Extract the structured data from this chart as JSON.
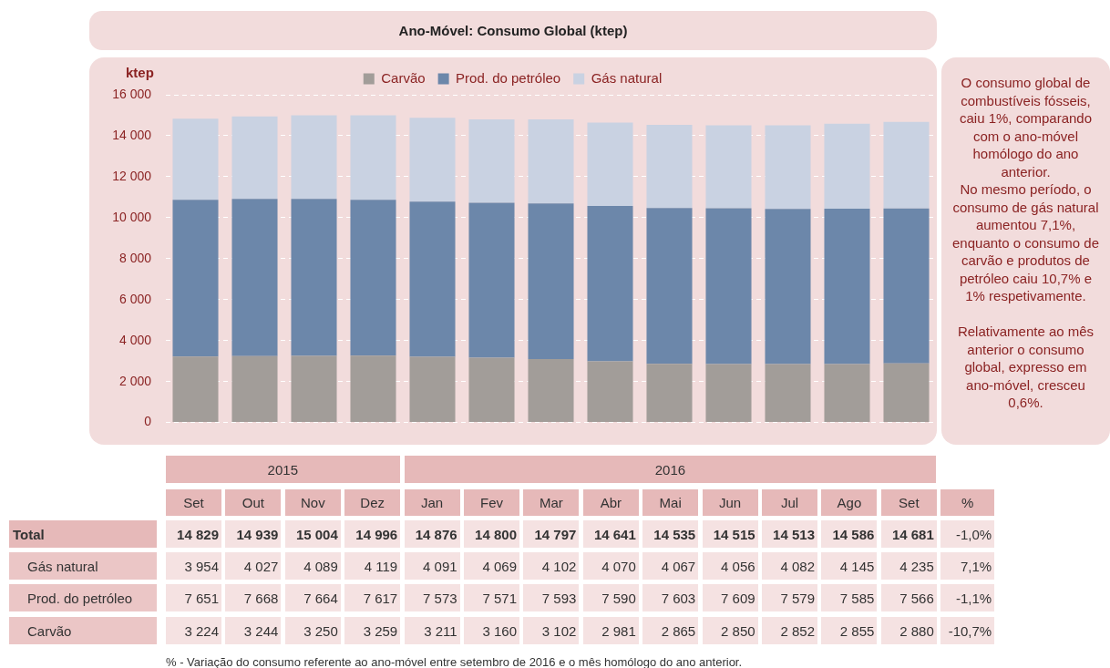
{
  "chart_data": {
    "type": "bar",
    "stacked": true,
    "title": "Ano-Móvel: Consumo Global (ktep)",
    "ylabel": "ktep",
    "categories": [
      "Set",
      "Out",
      "Nov",
      "Dez",
      "Jan",
      "Fev",
      "Mar",
      "Abr",
      "Mai",
      "Jun",
      "Jul",
      "Ago",
      "Set"
    ],
    "series": [
      {
        "name": "Carvão",
        "color": "#a29d99",
        "values": [
          3224,
          3244,
          3250,
          3259,
          3211,
          3160,
          3102,
          2981,
          2865,
          2850,
          2852,
          2855,
          2880
        ]
      },
      {
        "name": "Prod. do petróleo",
        "color": "#6c87aa",
        "values": [
          7651,
          7668,
          7664,
          7617,
          7573,
          7571,
          7593,
          7590,
          7603,
          7609,
          7579,
          7585,
          7566
        ]
      },
      {
        "name": "Gás natural",
        "color": "#c9d2e2",
        "values": [
          3954,
          4027,
          4089,
          4119,
          4091,
          4069,
          4102,
          4070,
          4067,
          4056,
          4082,
          4145,
          4235
        ]
      }
    ],
    "data_labels": true,
    "ylim": [
      0,
      16000
    ],
    "yticks": [
      0,
      {
        "value": 2000,
        "label": "2 000"
      },
      {
        "value": 4000,
        "label": "4 000"
      },
      {
        "value": 6000,
        "label": "6 000"
      },
      {
        "value": 8000,
        "label": "8 000"
      },
      {
        "value": 10000,
        "label": "10 000"
      },
      {
        "value": 12000,
        "label": "12 000"
      },
      {
        "value": 14000,
        "label": "14 000"
      },
      {
        "value": 16000,
        "label": "16 000"
      }
    ],
    "grid": "y",
    "legend": "top",
    "annotations": [
      "O consumo global  de combustíveis fósseis, caiu 1%,  comparando com o ano-móvel homólogo do ano anterior.\nNo mesmo período, o consumo de gás natural aumentou 7,1%, enquanto o consumo de carvão e produtos de petróleo caiu 10,7% e 1% respetivamente.\n\nRelativamente ao mês anterior o consumo global,  expresso em ano-móvel, cresceu 0,6%.",
      "% - Variação do consumo referente ao ano-móvel entre setembro de 2016 e o mês homólogo do ano anterior.",
      "2015",
      "2016",
      "%",
      "Total",
      "-1,0%",
      "7,1%",
      "-1,1%",
      "-10,7%",
      "14 829",
      "14 939",
      "15 004",
      "14 996",
      "14 876",
      "14 800",
      "14 797",
      "14 641",
      "14 535",
      "14 515",
      "14 513",
      "14 586",
      "14 681"
    ]
  }
}
